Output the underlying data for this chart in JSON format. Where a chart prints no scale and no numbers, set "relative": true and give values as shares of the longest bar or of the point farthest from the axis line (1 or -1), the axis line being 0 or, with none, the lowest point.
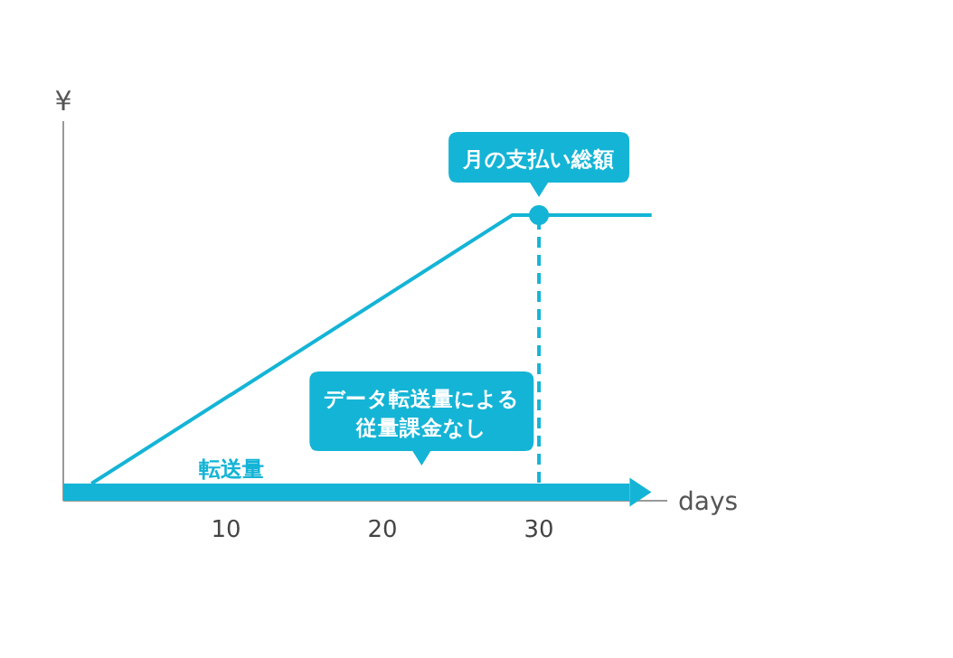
{
  "chart_data": {
    "type": "line",
    "ylabel": "¥",
    "xlabel": "days",
    "relative": true,
    "xlim": [
      -0.4,
      38.2
    ],
    "xticks": [
      10,
      20,
      30
    ],
    "grid": false,
    "series": [
      {
        "name": "転送量",
        "type": "area",
        "color": "#14b4d6",
        "x": [
          -0.4,
          35.8
        ],
        "values": [
          0.06,
          0.06
        ]
      },
      {
        "color": "#14b4d6",
        "x": [
          1.4,
          28.3,
          37.2
        ],
        "values": [
          0.06,
          1,
          1
        ]
      },
      {
        "type": "scatter",
        "marker": "circle",
        "color": "#14b4d6",
        "x": [
          30
        ],
        "values": [
          1
        ]
      }
    ],
    "ref_lines": [
      {
        "axis": "x",
        "value": 30,
        "color": "#14b4d6",
        "line_style": "dashed"
      }
    ],
    "annotations": [
      {
        "text": "月の支払い総額",
        "x": 30,
        "y": 1
      },
      {
        "text": "データ転送量による従量課金なし",
        "x": 22.5,
        "y": 0.06
      }
    ]
  }
}
